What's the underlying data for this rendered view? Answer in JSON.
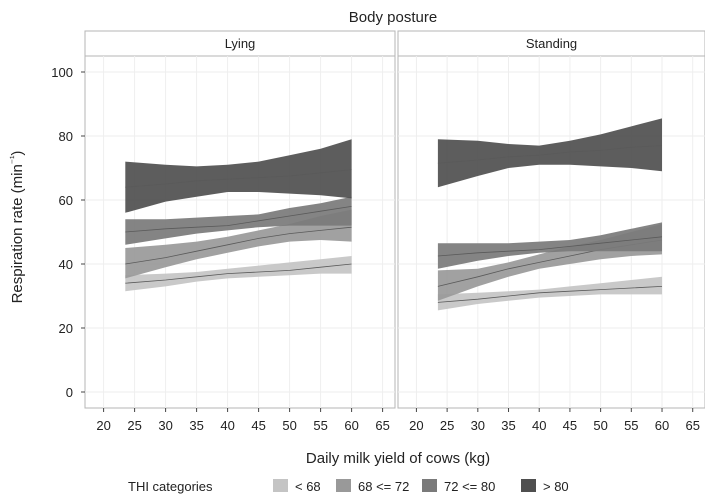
{
  "chart_data": {
    "type": "area",
    "title": "Body posture",
    "xlabel": "Daily milk yield of cows (kg)",
    "ylabel": "Respiration rate (min⁻¹)",
    "xlim": [
      17,
      67
    ],
    "ylim": [
      -5,
      105
    ],
    "x_ticks": [
      20,
      25,
      30,
      35,
      40,
      45,
      50,
      55,
      60,
      65
    ],
    "y_ticks": [
      0,
      20,
      40,
      60,
      80,
      100
    ],
    "grid": true,
    "legend_title": "THI categories",
    "legend_position": "bottom",
    "x": [
      23.5,
      30,
      35,
      40,
      45,
      50,
      55,
      60
    ],
    "series_meta": [
      {
        "name": "< 68",
        "color": "#c4c4c4"
      },
      {
        "name": "68 <= 72",
        "color": "#999999"
      },
      {
        "name": "72 <= 80",
        "color": "#7a7a7a"
      },
      {
        "name": "> 80",
        "color": "#4f4f4f"
      }
    ],
    "panels": [
      {
        "label": "Lying",
        "series": [
          {
            "name": "< 68",
            "fit": [
              34,
              35,
              36,
              37,
              37.5,
              38,
              39,
              40
            ],
            "lower": [
              31.5,
              33,
              34.5,
              35.5,
              36,
              36.5,
              37,
              37
            ],
            "upper": [
              36.5,
              37,
              37.5,
              38.5,
              39.5,
              40.5,
              41.5,
              42.5
            ]
          },
          {
            "name": "68 <= 72",
            "fit": [
              40,
              42,
              44,
              46,
              48,
              49.5,
              50.5,
              51.5
            ],
            "lower": [
              35.5,
              39,
              41.5,
              43.5,
              45.5,
              47,
              47.5,
              47
            ],
            "upper": [
              45,
              46,
              47,
              48.5,
              50.5,
              52.5,
              55,
              57
            ]
          },
          {
            "name": "72 <= 80",
            "fit": [
              50,
              51,
              51.5,
              52,
              53.5,
              55,
              56.5,
              58
            ],
            "lower": [
              46,
              48,
              49.5,
              50.5,
              51.5,
              52,
              52,
              52
            ],
            "upper": [
              54,
              54,
              54.5,
              55,
              55.5,
              57.5,
              59,
              61
            ]
          },
          {
            "name": "> 80",
            "fit": [
              64,
              65,
              66,
              66.5,
              67,
              67.5,
              68.5,
              69.5
            ],
            "lower": [
              56,
              59.5,
              61,
              62.5,
              62.5,
              62,
              61.5,
              60.5
            ],
            "upper": [
              72,
              71,
              70.5,
              71,
              72,
              74,
              76,
              79
            ]
          }
        ]
      },
      {
        "label": "Standing",
        "series": [
          {
            "name": "< 68",
            "fit": [
              28,
              29,
              30,
              31,
              31.5,
              32,
              32.5,
              33
            ],
            "lower": [
              25.5,
              27.5,
              28.5,
              29.5,
              30,
              30.5,
              30.5,
              30.5
            ],
            "upper": [
              30.5,
              31,
              31.5,
              32,
              33,
              34,
              35,
              36
            ]
          },
          {
            "name": "68 <= 72",
            "fit": [
              33,
              36,
              38.5,
              40.5,
              42.5,
              44.5,
              46,
              47.5
            ],
            "lower": [
              28.5,
              33,
              36,
              38.5,
              40,
              41.5,
              42.5,
              43
            ],
            "upper": [
              38,
              38.5,
              40.5,
              43,
              45.5,
              47.5,
              50,
              52.5
            ]
          },
          {
            "name": "72 <= 80",
            "fit": [
              42.5,
              43.5,
              44,
              44.5,
              45.5,
              46.5,
              47.5,
              48.5
            ],
            "lower": [
              38.5,
              41,
              42.5,
              43.5,
              44,
              44,
              44,
              44
            ],
            "upper": [
              46.5,
              46.5,
              46.5,
              47,
              47.5,
              49,
              51,
              53
            ]
          },
          {
            "name": "> 80",
            "fit": [
              71.5,
              72.5,
              73.5,
              74,
              75,
              75.5,
              76.5,
              77
            ],
            "lower": [
              64,
              67.5,
              70,
              71,
              71,
              70.5,
              70,
              69
            ],
            "upper": [
              79,
              78.5,
              77.5,
              77,
              78.5,
              80.5,
              83,
              85.5
            ]
          }
        ]
      }
    ]
  }
}
